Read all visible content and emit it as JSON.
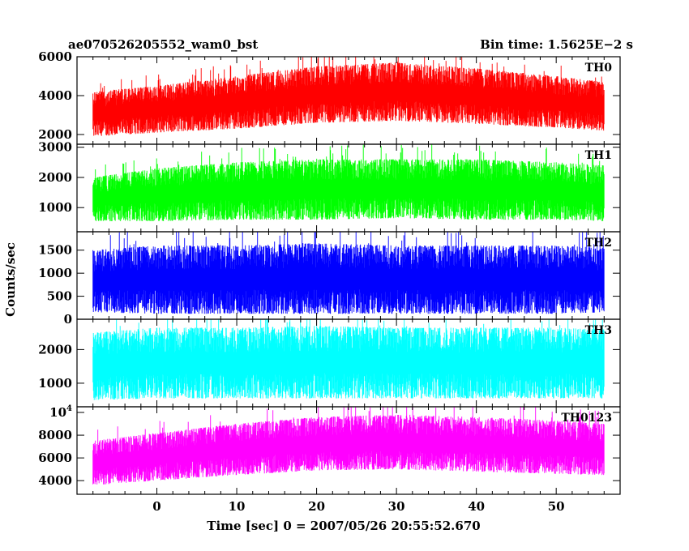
{
  "chart_data": {
    "type": "line",
    "title": "ae070526205552_wam0_bst",
    "bin_time_label": "Bin time: 1.5625E−2 s",
    "xlabel": "Time [sec] 0 = 2007/05/26 20:55:52.670",
    "ylabel": "Counts/sec",
    "xlim": [
      -10,
      58
    ],
    "x_ticks": [
      0,
      10,
      20,
      30,
      40,
      50
    ],
    "data_x_range": [
      -8,
      56
    ],
    "grid": false,
    "panels": [
      {
        "name": "TH0",
        "color": "#ff0000",
        "ylim": [
          1500,
          6000
        ],
        "y_ticks": [
          2000,
          4000,
          6000
        ],
        "y_tick_labels": [
          "2000",
          "4000",
          "6000"
        ],
        "envelope_x": [
          -8,
          0,
          10,
          20,
          30,
          40,
          50,
          56
        ],
        "envelope_low": [
          1900,
          2100,
          2300,
          2600,
          2700,
          2550,
          2350,
          2200
        ],
        "envelope_high": [
          4200,
          4500,
          5000,
          5500,
          5700,
          5400,
          5000,
          4700
        ]
      },
      {
        "name": "TH1",
        "color": "#00ff00",
        "ylim": [
          200,
          3100
        ],
        "y_ticks": [
          1000,
          2000,
          3000
        ],
        "y_tick_labels": [
          "1000",
          "2000",
          "3000"
        ],
        "envelope_x": [
          -8,
          0,
          10,
          20,
          30,
          40,
          50,
          56
        ],
        "envelope_low": [
          550,
          550,
          600,
          600,
          650,
          600,
          600,
          550
        ],
        "envelope_high": [
          2000,
          2300,
          2500,
          2600,
          2600,
          2600,
          2500,
          2400
        ]
      },
      {
        "name": "TH2",
        "color": "#0000ff",
        "ylim": [
          0,
          1900
        ],
        "y_ticks": [
          0,
          500,
          1000,
          1500
        ],
        "y_tick_labels": [
          "0",
          "500",
          "1000",
          "1500"
        ],
        "envelope_x": [
          -8,
          0,
          10,
          20,
          30,
          40,
          50,
          56
        ],
        "envelope_low": [
          150,
          120,
          120,
          120,
          120,
          120,
          120,
          150
        ],
        "envelope_high": [
          1500,
          1600,
          1600,
          1650,
          1600,
          1600,
          1600,
          1550
        ]
      },
      {
        "name": "TH3",
        "color": "#00ffff",
        "ylim": [
          300,
          2900
        ],
        "y_ticks": [
          1000,
          2000
        ],
        "y_tick_labels": [
          "1000",
          "2000"
        ],
        "envelope_x": [
          -8,
          0,
          10,
          20,
          30,
          40,
          50,
          56
        ],
        "envelope_low": [
          500,
          550,
          550,
          550,
          550,
          550,
          550,
          550
        ],
        "envelope_high": [
          2500,
          2650,
          2650,
          2700,
          2650,
          2650,
          2650,
          2600
        ]
      },
      {
        "name": "TH0123",
        "color": "#ff00ff",
        "ylim": [
          2800,
          10500
        ],
        "y_ticks": [
          4000,
          6000,
          8000,
          10000
        ],
        "y_tick_labels": [
          "4000",
          "6000",
          "8000",
          "10^4"
        ],
        "envelope_x": [
          -8,
          0,
          10,
          20,
          30,
          40,
          50,
          56
        ],
        "envelope_low": [
          3600,
          4000,
          4500,
          4900,
          5000,
          4800,
          4600,
          4500
        ],
        "envelope_high": [
          7500,
          8200,
          9000,
          9600,
          9800,
          9600,
          9300,
          9000
        ]
      }
    ]
  }
}
